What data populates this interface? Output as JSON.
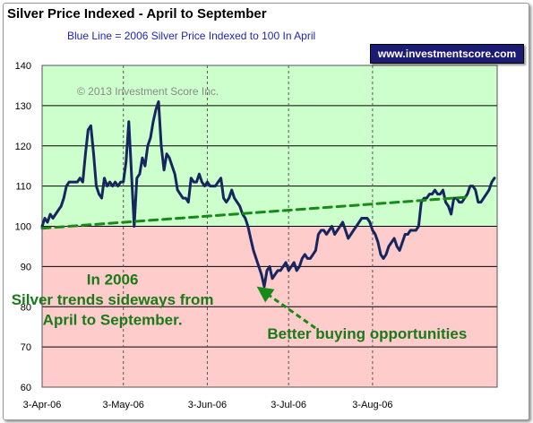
{
  "header": {
    "title": "Silver Price Indexed - April to September",
    "subtitle": "Blue Line =  2006 Silver Price Indexed to 100 In April",
    "website": "www.investmentscore.com"
  },
  "colors": {
    "above_band": "#ccffcc",
    "below_band": "#ffcccc",
    "price_line": "#16265e",
    "trend_line": "#178a17",
    "annotation_text": "#187a18",
    "badge_bg": "#1c1b73"
  },
  "chart_data": {
    "type": "line",
    "title": "Silver Price Indexed - April to September",
    "subtitle": "Blue Line =  2006 Silver Price Indexed to 100 In April",
    "ylim": [
      60,
      140
    ],
    "yticks": [
      60,
      70,
      80,
      90,
      100,
      110,
      120,
      130,
      140
    ],
    "xlim": [
      0,
      168
    ],
    "xtick_labels": [
      "3-Apr-06",
      "3-May-06",
      "3-Jun-06",
      "3-Jul-06",
      "3-Aug-06"
    ],
    "xtick_positions": [
      0,
      30,
      61,
      91,
      122
    ],
    "x_unit": "days since 3-Apr-06",
    "grid": true,
    "bands": [
      {
        "from": 100,
        "to": 140,
        "color": "#ccffcc"
      },
      {
        "from": 60,
        "to": 100,
        "color": "#ffcccc"
      }
    ],
    "watermark": "© 2013 Investment Score Inc.",
    "series": [
      {
        "name": "2006 Silver Price Indexed",
        "color": "#16265e",
        "x": [
          0,
          1,
          2,
          3,
          4,
          5,
          6,
          7,
          8,
          9,
          10,
          11,
          12,
          13,
          14,
          15,
          16,
          17,
          18,
          19,
          20,
          21,
          22,
          23,
          24,
          25,
          26,
          27,
          28,
          29,
          30,
          31,
          32,
          33,
          34,
          35,
          36,
          37,
          38,
          39,
          40,
          41,
          42,
          43,
          44,
          45,
          46,
          47,
          48,
          49,
          50,
          51,
          52,
          53,
          54,
          55,
          56,
          57,
          58,
          59,
          60,
          61,
          62,
          63,
          64,
          65,
          66,
          67,
          68,
          69,
          70,
          71,
          72,
          73,
          74,
          75,
          76,
          77,
          78,
          79,
          80,
          81,
          82,
          83,
          84,
          85,
          86,
          87,
          88,
          89,
          90,
          91,
          92,
          93,
          94,
          95,
          96,
          97,
          98,
          99,
          100,
          101,
          102,
          103,
          104,
          105,
          106,
          107,
          108,
          109,
          110,
          111,
          112,
          113,
          114,
          115,
          116,
          117,
          118,
          119,
          120,
          121,
          122,
          123,
          124,
          125,
          126,
          127,
          128,
          129,
          130,
          131,
          132,
          133,
          134,
          135,
          136,
          137,
          138,
          139,
          140,
          141,
          142,
          143,
          144,
          145,
          146,
          147,
          148,
          149,
          150,
          151,
          152,
          153,
          154,
          155,
          156,
          157,
          158,
          159,
          160,
          161,
          162,
          163,
          164,
          165,
          166,
          167
        ],
        "y": [
          100,
          102,
          101,
          103,
          102,
          103,
          104,
          105,
          107,
          110,
          111,
          111,
          111,
          111,
          112,
          111,
          118,
          124,
          125,
          118,
          110,
          108,
          107,
          112,
          110,
          111,
          110,
          111,
          110,
          111,
          111,
          116,
          126,
          113,
          100,
          112,
          113,
          117,
          115,
          120,
          122,
          126,
          129,
          131,
          120,
          114,
          118,
          117,
          115,
          113,
          109,
          108,
          107,
          107,
          106,
          112,
          111,
          111,
          113,
          111,
          110,
          111,
          110,
          110,
          110,
          111,
          112,
          107,
          106,
          107,
          109,
          107,
          106,
          105,
          103,
          102,
          100,
          97,
          94,
          92,
          90,
          88,
          85,
          89,
          90,
          87,
          88,
          89,
          89,
          90,
          91,
          89,
          90,
          91,
          89,
          90,
          92,
          93,
          92,
          92,
          93,
          94,
          98,
          99,
          99,
          98,
          99,
          100,
          98,
          99,
          100,
          101,
          99,
          97,
          98,
          99,
          100,
          101,
          102,
          102,
          102,
          101,
          99,
          98,
          96,
          93,
          92,
          93,
          95,
          96,
          97,
          95,
          94,
          96,
          98,
          98,
          99,
          99,
          99,
          100,
          106,
          107,
          107,
          108,
          108,
          109,
          108,
          108,
          109,
          106,
          105,
          103,
          107,
          107,
          106,
          106,
          107,
          108,
          110,
          110,
          109,
          106,
          106,
          107,
          108,
          109,
          111,
          112
        ],
        "x_date_labels_note": "daily index values"
      },
      {
        "name": "Trend",
        "color": "#178a17",
        "style": "dashed",
        "x": [
          0,
          158
        ],
        "y": [
          99.5,
          107.3
        ]
      }
    ],
    "annotations": [
      {
        "text": "In 2006",
        "x": 26,
        "y": 85.5
      },
      {
        "text": "Silver trends sideways from",
        "x": 26,
        "y": 80.5
      },
      {
        "text": "April to September.",
        "x": 26,
        "y": 75.5
      },
      {
        "text": "Better buying opportunities",
        "x": 120,
        "y": 72
      }
    ]
  }
}
